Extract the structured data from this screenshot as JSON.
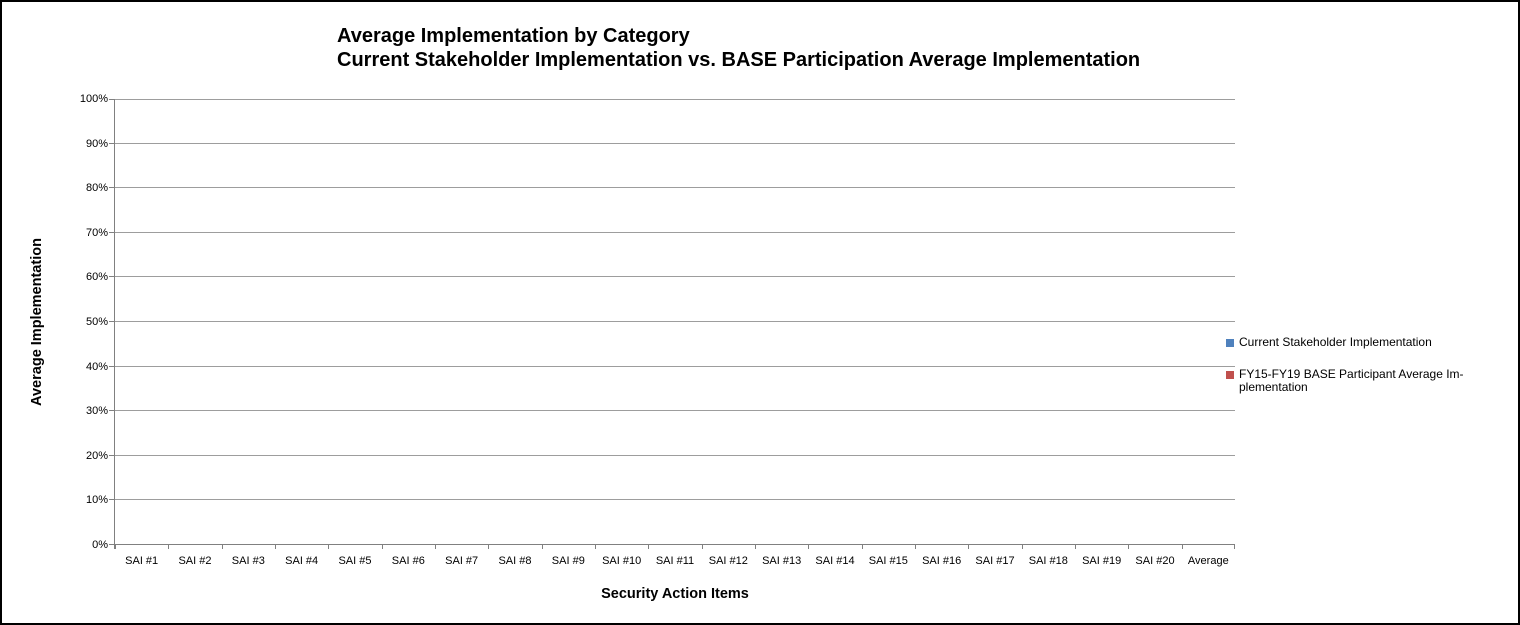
{
  "chart": {
    "title_line1": "Average Implementation by Category",
    "title_line2": "Current Stakeholder Implementation vs. BASE Participation Average Implementation",
    "y_axis": {
      "title": "Average Implementation",
      "ticks": [
        "0%",
        "10%",
        "20%",
        "30%",
        "40%",
        "50%",
        "60%",
        "70%",
        "80%",
        "90%",
        "100%"
      ]
    },
    "x_axis": {
      "title": "Security Action Items",
      "categories": [
        "SAI #1",
        "SAI #2",
        "SAI #3",
        "SAI #4",
        "SAI #5",
        "SAI #6",
        "SAI #7",
        "SAI #8",
        "SAI #9",
        "SAI #10",
        "SAI #11",
        "SAI #12",
        "SAI #13",
        "SAI #14",
        "SAI #15",
        "SAI #16",
        "SAI #17",
        "SAI #18",
        "SAI #19",
        "SAI #20",
        "Average"
      ]
    },
    "legend": {
      "items": [
        {
          "label": "Current Stakeholder Implementation",
          "color": "#4F81BD"
        },
        {
          "label_line1": "FY15-FY19 BASE Participant Average Im-",
          "label_line2": "plementation",
          "color": "#C0504D"
        }
      ]
    },
    "colors": {
      "gridline": "#9d9d9d",
      "axis": "#808080",
      "text": "#000000"
    }
  },
  "chart_data": {
    "type": "bar",
    "title": "Average Implementation by Category",
    "subtitle": "Current Stakeholder Implementation vs. BASE Participation Average Implementation",
    "xlabel": "Security Action Items",
    "ylabel": "Average Implementation",
    "categories": [
      "SAI #1",
      "SAI #2",
      "SAI #3",
      "SAI #4",
      "SAI #5",
      "SAI #6",
      "SAI #7",
      "SAI #8",
      "SAI #9",
      "SAI #10",
      "SAI #11",
      "SAI #12",
      "SAI #13",
      "SAI #14",
      "SAI #15",
      "SAI #16",
      "SAI #17",
      "SAI #18",
      "SAI #19",
      "SAI #20",
      "Average"
    ],
    "series": [
      {
        "name": "Current Stakeholder Implementation",
        "color": "#4F81BD",
        "values": [
          0,
          0,
          0,
          0,
          0,
          0,
          0,
          0,
          0,
          0,
          0,
          0,
          0,
          0,
          0,
          0,
          0,
          0,
          0,
          0,
          0
        ]
      },
      {
        "name": "FY15-FY19 BASE Participant Average Implementation",
        "color": "#C0504D",
        "values": [
          0,
          0,
          0,
          0,
          0,
          0,
          0,
          0,
          0,
          0,
          0,
          0,
          0,
          0,
          0,
          0,
          0,
          0,
          0,
          0,
          0
        ]
      }
    ],
    "ylim": [
      0,
      1
    ],
    "y_tick_labels": [
      "0%",
      "10%",
      "20%",
      "30%",
      "40%",
      "50%",
      "60%",
      "70%",
      "80%",
      "90%",
      "100%"
    ],
    "grid": true,
    "legend_position": "right"
  }
}
